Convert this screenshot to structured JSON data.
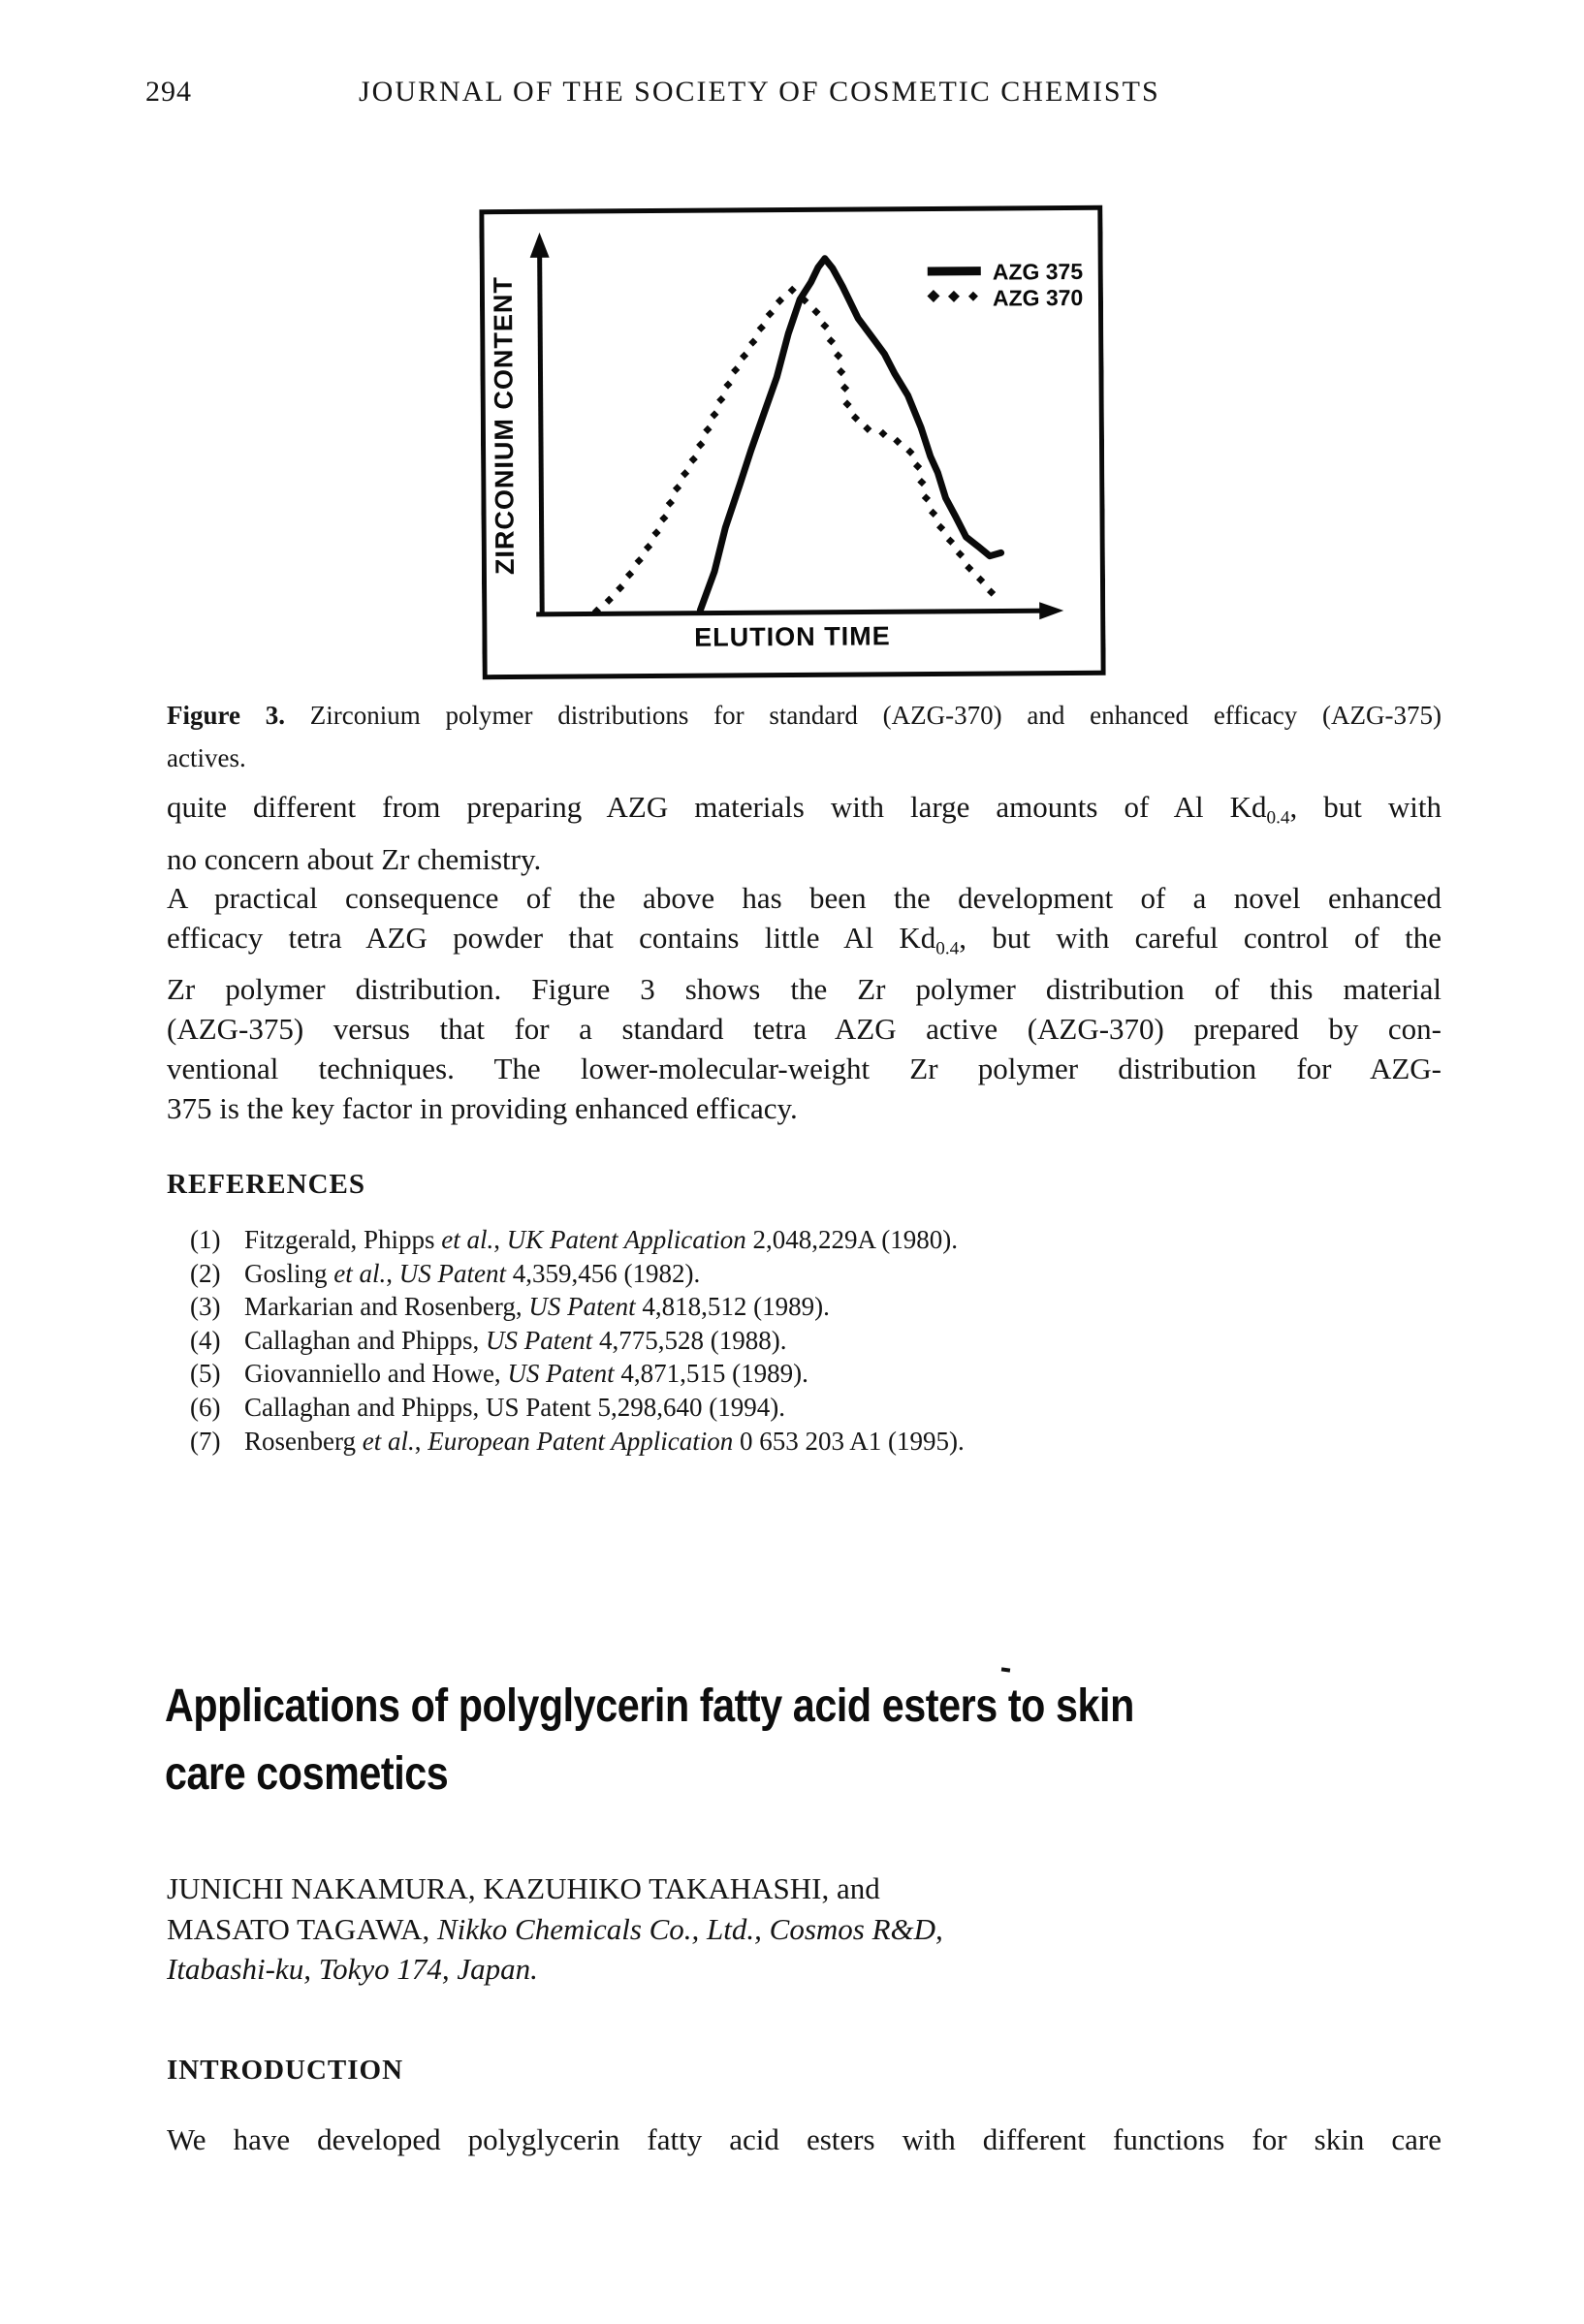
{
  "page": {
    "number": "294",
    "journal_title": "JOURNAL OF THE SOCIETY OF COSMETIC CHEMISTS"
  },
  "chart_data": {
    "type": "line",
    "title": "",
    "xlabel": "ELUTION TIME",
    "ylabel": "ZIRCONIUM CONTENT",
    "x_range": [
      0,
      100
    ],
    "y_range": [
      0,
      100
    ],
    "axis_tick_labels": "none (arbitrary units, arrowed axes)",
    "grid": false,
    "legend_position": "top-right",
    "series": [
      {
        "name": "AZG 375",
        "style": "solid",
        "points": [
          [
            30.8,
            0.8
          ],
          [
            33.6,
            11.0
          ],
          [
            35.8,
            22.6
          ],
          [
            38.7,
            34.1
          ],
          [
            40.9,
            43.1
          ],
          [
            43.6,
            53.3
          ],
          [
            46.0,
            62.3
          ],
          [
            48.3,
            73.8
          ],
          [
            50.6,
            82.8
          ],
          [
            52.8,
            87.4
          ],
          [
            54.2,
            91.3
          ],
          [
            55.5,
            93.6
          ],
          [
            57.0,
            91.0
          ],
          [
            58.9,
            86.2
          ],
          [
            61.9,
            77.7
          ],
          [
            65.1,
            71.8
          ],
          [
            67.0,
            68.2
          ],
          [
            68.9,
            63.1
          ],
          [
            71.5,
            57.2
          ],
          [
            74.0,
            48.7
          ],
          [
            75.8,
            41.0
          ],
          [
            77.2,
            36.7
          ],
          [
            78.7,
            30.0
          ],
          [
            80.6,
            25.1
          ],
          [
            82.6,
            19.7
          ],
          [
            84.9,
            17.2
          ],
          [
            87.2,
            14.6
          ],
          [
            89.4,
            15.4
          ]
        ]
      },
      {
        "name": "AZG 370",
        "style": "dashed-markers",
        "points": [
          [
            10.6,
            0.8
          ],
          [
            13.2,
            3.8
          ],
          [
            15.3,
            6.9
          ],
          [
            18.1,
            12.3
          ],
          [
            20.9,
            17.9
          ],
          [
            23.4,
            23.8
          ],
          [
            25.8,
            31.5
          ],
          [
            27.9,
            36.7
          ],
          [
            29.8,
            41.0
          ],
          [
            31.9,
            46.9
          ],
          [
            34.0,
            53.1
          ],
          [
            35.8,
            58.5
          ],
          [
            37.9,
            64.1
          ],
          [
            40.0,
            68.7
          ],
          [
            41.9,
            72.6
          ],
          [
            43.8,
            77.2
          ],
          [
            45.7,
            80.8
          ],
          [
            47.5,
            83.8
          ],
          [
            49.2,
            85.4
          ],
          [
            50.9,
            83.3
          ],
          [
            53.4,
            80.3
          ],
          [
            55.5,
            75.6
          ],
          [
            56.6,
            71.8
          ],
          [
            57.9,
            68.7
          ],
          [
            58.3,
            64.9
          ],
          [
            59.2,
            59.7
          ],
          [
            59.8,
            53.8
          ],
          [
            62.1,
            50.0
          ],
          [
            63.0,
            48.7
          ],
          [
            65.8,
            47.7
          ],
          [
            68.9,
            45.6
          ],
          [
            71.7,
            42.6
          ],
          [
            73.0,
            40.0
          ],
          [
            73.6,
            36.7
          ],
          [
            74.9,
            30.0
          ],
          [
            76.4,
            25.6
          ],
          [
            78.1,
            21.3
          ],
          [
            79.8,
            18.2
          ],
          [
            81.3,
            15.4
          ],
          [
            83.4,
            11.0
          ],
          [
            85.3,
            8.5
          ],
          [
            87.0,
            5.4
          ],
          [
            89.4,
            3.3
          ]
        ]
      }
    ]
  },
  "figure": {
    "caption_label": "Figure 3.",
    "caption_line1_rest": " Zirconium polymer distributions for standard (AZG-370) and enhanced efficacy (AZG-375)",
    "caption_line2": "actives."
  },
  "paragraphs": {
    "p1": {
      "line1_pre": "quite different from preparing AZG materials with large amounts of Al Kd",
      "line1_sub": "0.4",
      "line1_post": ", but with",
      "line2": "no concern about Zr chemistry."
    },
    "p2": {
      "line1": "A practical consequence of the above has been the development of a novel enhanced",
      "line2_pre": "efficacy tetra AZG powder that contains little Al Kd",
      "line2_sub": "0.4",
      "line2_post": ", but with careful control of the",
      "line3": "Zr polymer distribution. Figure 3 shows the Zr polymer distribution of this material",
      "line4": "(AZG-375) versus that for a standard tetra AZG active (AZG-370) prepared by con-",
      "line5": "ventional techniques. The lower-molecular-weight Zr polymer distribution for AZG-",
      "line6": "375 is the key factor in providing enhanced efficacy."
    }
  },
  "references": {
    "heading": "REFERENCES",
    "items": [
      {
        "number": "(1)",
        "segments": [
          {
            "text": "Fitzgerald, Phipps ",
            "italic": false
          },
          {
            "text": "et al.",
            "italic": true
          },
          {
            "text": ", ",
            "italic": false
          },
          {
            "text": "UK Patent Application",
            "italic": true
          },
          {
            "text": " 2,048,229A (1980).",
            "italic": false
          }
        ]
      },
      {
        "number": "(2)",
        "segments": [
          {
            "text": "Gosling ",
            "italic": false
          },
          {
            "text": "et al.",
            "italic": true
          },
          {
            "text": ", ",
            "italic": false
          },
          {
            "text": "US Patent",
            "italic": true
          },
          {
            "text": " 4,359,456 (1982).",
            "italic": false
          }
        ]
      },
      {
        "number": "(3)",
        "segments": [
          {
            "text": "Markarian and Rosenberg, ",
            "italic": false
          },
          {
            "text": "US Patent",
            "italic": true
          },
          {
            "text": " 4,818,512 (1989).",
            "italic": false
          }
        ]
      },
      {
        "number": "(4)",
        "segments": [
          {
            "text": "Callaghan and Phipps, ",
            "italic": false
          },
          {
            "text": "US Patent",
            "italic": true
          },
          {
            "text": " 4,775,528 (1988).",
            "italic": false
          }
        ]
      },
      {
        "number": "(5)",
        "segments": [
          {
            "text": "Giovanniello and Howe, ",
            "italic": false
          },
          {
            "text": "US Patent",
            "italic": true
          },
          {
            "text": " 4,871,515 (1989).",
            "italic": false
          }
        ]
      },
      {
        "number": "(6)",
        "segments": [
          {
            "text": "Callaghan and Phipps, US Patent 5,298,640 (1994).",
            "italic": false
          }
        ]
      },
      {
        "number": "(7)",
        "segments": [
          {
            "text": "Rosenberg ",
            "italic": false
          },
          {
            "text": "et al.",
            "italic": true
          },
          {
            "text": ", ",
            "italic": false
          },
          {
            "text": "European Patent Application",
            "italic": true
          },
          {
            "text": " 0 653 203 A1 (1995).",
            "italic": false
          }
        ]
      }
    ]
  },
  "article": {
    "title_line1": "Applications of polyglycerin fatty acid esters to skin",
    "title_line2": "care cosmetics",
    "authors_line1": [
      {
        "text": "JUNICHI NAKAMURA, KAZUHIKO TAKAHASHI, and",
        "italic": false
      }
    ],
    "authors_line2": [
      {
        "text": "MASATO TAGAWA, ",
        "italic": false
      },
      {
        "text": "Nikko Chemicals Co., Ltd., Cosmos R&D,",
        "italic": true
      }
    ],
    "authors_line3": [
      {
        "text": "Itabashi-ku, Tokyo 174, Japan.",
        "italic": true
      }
    ],
    "intro_heading": "INTRODUCTION",
    "intro_line1": "We have developed polyglycerin fatty acid esters with different functions for skin care"
  }
}
